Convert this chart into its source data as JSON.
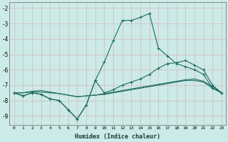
{
  "xlabel": "Humidex (Indice chaleur)",
  "background_color": "#cceae7",
  "grid_color": "#aad4d0",
  "line_color": "#1e6b60",
  "x_values": [
    0,
    1,
    2,
    3,
    4,
    5,
    6,
    7,
    8,
    9,
    10,
    11,
    12,
    13,
    14,
    15,
    16,
    17,
    18,
    19,
    20,
    21,
    22,
    23
  ],
  "series": [
    [
      -7.5,
      -7.7,
      -7.5,
      -7.6,
      -7.9,
      -8.0,
      -8.6,
      -9.2,
      -8.3,
      -6.7,
      -5.5,
      -4.1,
      -2.8,
      -2.8,
      -2.6,
      -2.35,
      -4.6,
      -5.1,
      -5.6,
      -5.8,
      -6.0,
      -6.3,
      -7.2,
      -7.5
    ],
    [
      -7.5,
      -7.7,
      -7.5,
      -7.6,
      -7.9,
      -8.0,
      -8.6,
      -9.2,
      -8.3,
      -6.7,
      -7.5,
      -7.3,
      -7.0,
      -6.8,
      -6.6,
      -6.3,
      -5.9,
      -5.6,
      -5.55,
      -5.4,
      -5.7,
      -6.0,
      -7.0,
      -7.5
    ],
    [
      -7.5,
      -7.5,
      -7.4,
      -7.35,
      -7.45,
      -7.55,
      -7.65,
      -7.75,
      -7.7,
      -7.65,
      -7.55,
      -7.45,
      -7.35,
      -7.25,
      -7.15,
      -7.05,
      -6.95,
      -6.85,
      -6.75,
      -6.65,
      -6.6,
      -6.75,
      -7.1,
      -7.5
    ],
    [
      -7.5,
      -7.5,
      -7.45,
      -7.45,
      -7.5,
      -7.55,
      -7.65,
      -7.75,
      -7.7,
      -7.65,
      -7.6,
      -7.5,
      -7.4,
      -7.3,
      -7.2,
      -7.1,
      -7.0,
      -6.9,
      -6.8,
      -6.7,
      -6.7,
      -6.8,
      -7.2,
      -7.5
    ]
  ],
  "ylim": [
    -9.6,
    -1.6
  ],
  "yticks": [
    -9,
    -8,
    -7,
    -6,
    -5,
    -4,
    -3,
    -2
  ],
  "xlim": [
    -0.5,
    23.5
  ],
  "xticks": [
    0,
    1,
    2,
    3,
    4,
    5,
    6,
    7,
    8,
    9,
    10,
    11,
    12,
    13,
    14,
    15,
    16,
    17,
    18,
    19,
    20,
    21,
    22,
    23
  ]
}
